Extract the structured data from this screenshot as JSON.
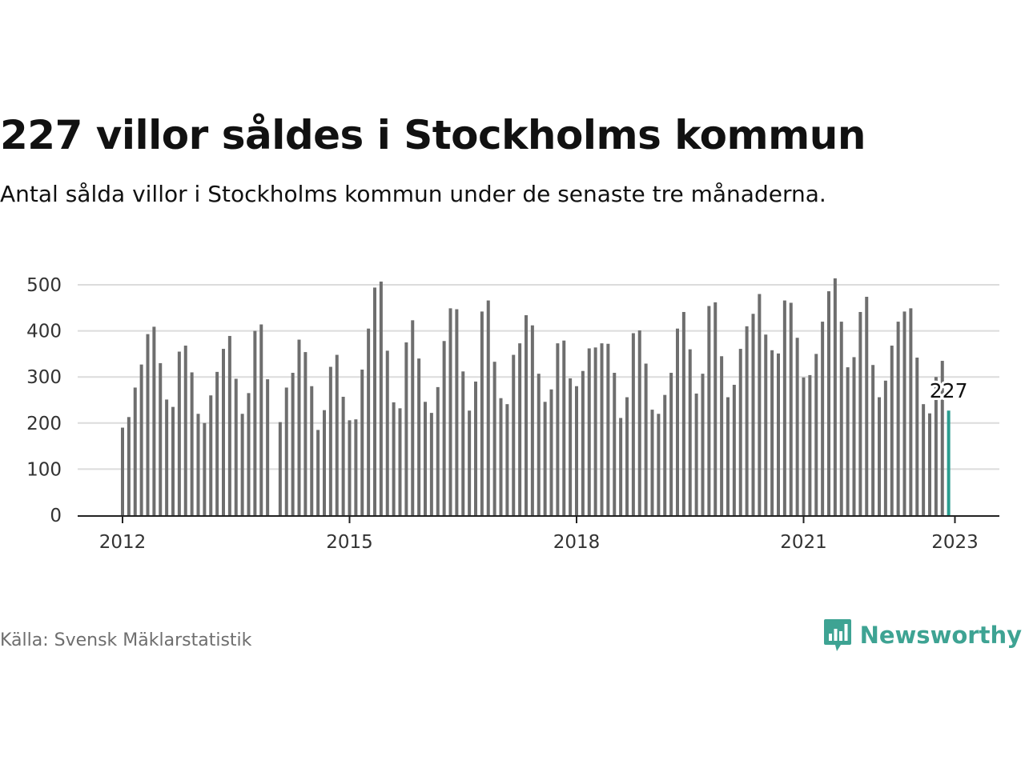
{
  "header": {
    "title": "227 villor såldes i Stockholms kommun",
    "subtitle": "Antal sålda villor i Stockholms kommun under de senaste tre månaderna."
  },
  "footer": {
    "source": "Källa: Svensk Mäklarstatistik",
    "brand": "Newsworthy"
  },
  "colors": {
    "bar": "#6e6e6e",
    "highlight": "#2a9d8f",
    "grid": "#dcdcdc",
    "axis": "#222222",
    "brand": "#3ea393"
  },
  "icons": {
    "brand_logo": "bar-chart-speech-bubble-icon"
  },
  "chart_data": {
    "type": "bar",
    "start": "2012-01",
    "ylim": [
      0,
      500
    ],
    "yticks": [
      0,
      100,
      200,
      300,
      400,
      500
    ],
    "xticks": [
      "2012",
      "2015",
      "2018",
      "2021",
      "2023"
    ],
    "grid": true,
    "highlight_label": "227",
    "values": [
      190,
      213,
      277,
      327,
      393,
      409,
      330,
      251,
      235,
      355,
      368,
      310,
      220,
      200,
      260,
      311,
      361,
      389,
      296,
      220,
      265,
      400,
      414,
      295,
      null,
      202,
      277,
      309,
      381,
      354,
      280,
      185,
      228,
      322,
      348,
      257,
      206,
      208,
      316,
      405,
      494,
      507,
      357,
      245,
      232,
      375,
      423,
      340,
      246,
      222,
      278,
      378,
      449,
      447,
      312,
      227,
      290,
      442,
      466,
      333,
      254,
      241,
      348,
      373,
      434,
      412,
      307,
      246,
      273,
      373,
      379,
      297,
      280,
      313,
      362,
      364,
      373,
      372,
      309,
      211,
      256,
      395,
      401,
      329,
      229,
      220,
      261,
      309,
      405,
      441,
      360,
      264,
      307,
      454,
      462,
      345,
      256,
      283,
      361,
      410,
      437,
      480,
      392,
      358,
      351,
      466,
      461,
      385,
      299,
      304,
      350,
      420,
      486,
      514,
      420,
      321,
      343,
      441,
      474,
      326,
      256,
      292,
      368,
      420,
      442,
      449,
      342,
      241,
      221,
      300,
      335,
      227
    ]
  }
}
